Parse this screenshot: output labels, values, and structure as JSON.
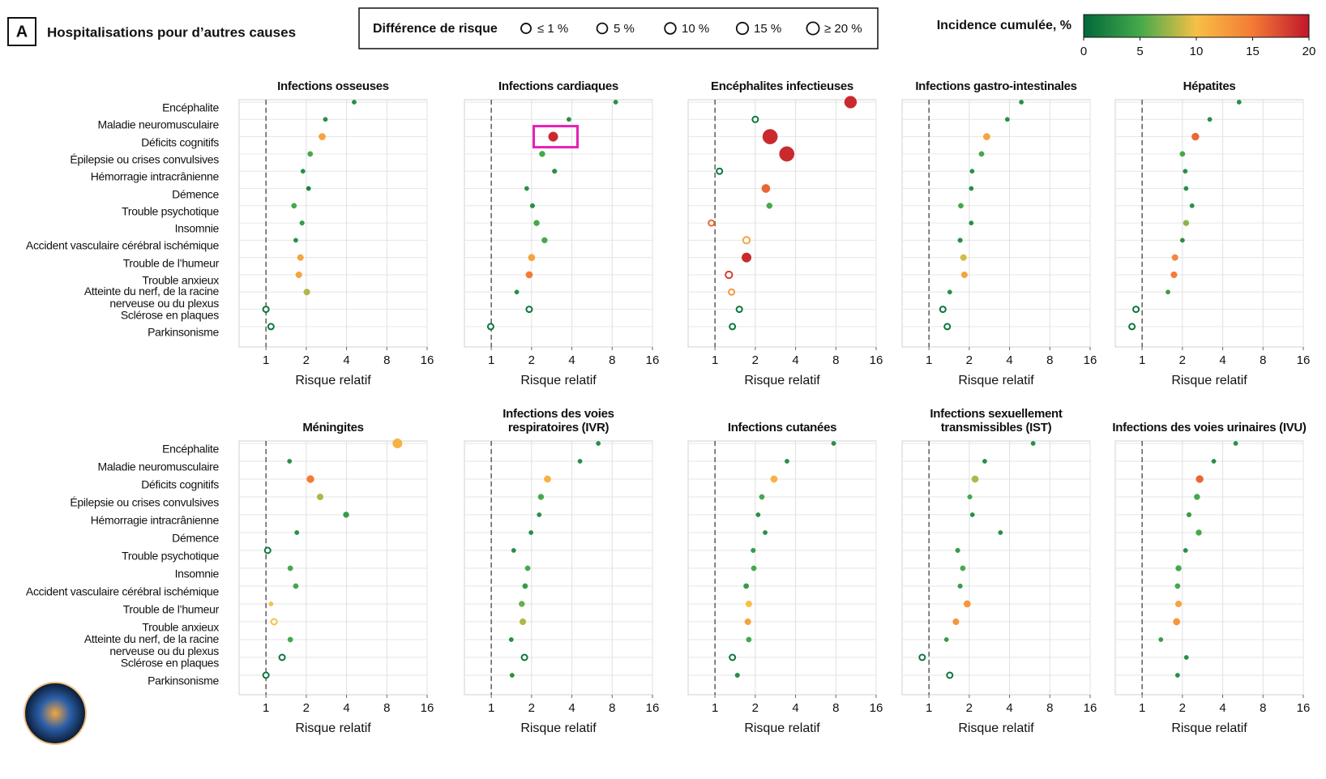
{
  "header": {
    "panel": "A",
    "title": "Hospitalisations pour d’autres causes"
  },
  "legend": {
    "title": "Différence de risque",
    "sizes": [
      {
        "value": 1,
        "label": "≤ 1 %"
      },
      {
        "value": 5,
        "label": "5 %"
      },
      {
        "value": 10,
        "label": "10 %"
      },
      {
        "value": 15,
        "label": "15 %"
      },
      {
        "value": 20,
        "label": "≥ 20 %"
      }
    ]
  },
  "colorbar": {
    "title": "Incidence cumulée, %",
    "ticks": [
      0,
      5,
      10,
      15,
      20
    ],
    "colors": [
      "#00683a",
      "#45a94b",
      "#f6c046",
      "#f47a36",
      "#c0162c"
    ]
  },
  "axis": {
    "xlabel": "Risque relatif",
    "log_base": 2,
    "xlim": [
      0.63,
      16
    ],
    "xticks": [
      1,
      2,
      4,
      8,
      16
    ],
    "reference": 1,
    "grid": true
  },
  "categories": [
    "Encéphalite",
    "Maladie neuromusculaire",
    "Déficits cognitifs",
    "Épilepsie ou crises convulsives",
    "Hémorragie intracrânienne",
    "Démence",
    "Trouble psychotique",
    "Insomnie",
    "Accident vasculaire cérébral ischémique",
    "Trouble de l’humeur",
    "Trouble anxieux",
    "Atteinte du nerf, de la racine\nnerveuse ou du plexus",
    "Sclérose en plaques",
    "Parkinsonisme"
  ],
  "chart_data": [
    {
      "type": "dot",
      "title": "Infections osseuses",
      "values": [
        4.56,
        2.78,
        2.63,
        2.14,
        1.89,
        2.08,
        1.62,
        1.86,
        1.67,
        1.81,
        1.76,
        2.02,
        1.0,
        1.09
      ],
      "sizes": [
        0.5,
        0.5,
        5,
        2,
        0.5,
        0.5,
        2,
        1,
        0.5,
        4,
        4,
        4,
        1,
        1
      ],
      "incidence": [
        3,
        3,
        12,
        5,
        3,
        2,
        5,
        4,
        3,
        12,
        12,
        8,
        1,
        1
      ],
      "hollow": [
        12,
        13
      ]
    },
    {
      "type": "dot",
      "title": "Infections cardiaques",
      "values": [
        8.5,
        3.8,
        2.9,
        2.4,
        2.97,
        1.84,
        2.03,
        2.18,
        2.5,
        2.0,
        1.92,
        1.55,
        1.92,
        0.99
      ],
      "sizes": [
        0.5,
        0.5,
        10,
        3,
        1,
        0.5,
        1,
        3,
        3,
        5,
        5,
        0.5,
        2,
        2
      ],
      "incidence": [
        3,
        3,
        19,
        5,
        3,
        3,
        3,
        5,
        5,
        12,
        15,
        3,
        1,
        1
      ],
      "hollow": [
        12,
        13
      ],
      "highlight": 2
    },
    {
      "type": "dot",
      "title": "Encéphalites infectieuses",
      "values": [
        10.3,
        2.0,
        2.58,
        3.44,
        1.08,
        2.4,
        2.55,
        0.94,
        1.72,
        1.72,
        1.27,
        1.33,
        1.52,
        1.35
      ],
      "sizes": [
        15,
        2,
        20,
        20,
        2,
        8,
        3,
        2,
        5,
        10,
        5,
        3,
        3,
        3
      ],
      "incidence": [
        19,
        1,
        19,
        19,
        1,
        16,
        5,
        16,
        12,
        19,
        18,
        13,
        1,
        1
      ],
      "hollow": [
        1,
        4,
        7,
        8,
        10,
        11,
        12,
        13
      ]
    },
    {
      "type": "dot",
      "title": "Infections gastro-intestinales",
      "values": [
        4.9,
        3.85,
        2.7,
        2.47,
        2.1,
        2.07,
        1.73,
        2.07,
        1.71,
        1.81,
        1.84,
        1.43,
        1.27,
        1.37
      ],
      "sizes": [
        0.5,
        0.5,
        5,
        2,
        0.5,
        0.5,
        2,
        0.5,
        1,
        4,
        4,
        0.5,
        2,
        2
      ],
      "incidence": [
        3,
        3,
        12,
        5,
        3,
        3,
        5,
        3,
        3,
        9,
        12,
        3,
        1,
        1
      ],
      "hollow": [
        12,
        13
      ]
    },
    {
      "type": "dot",
      "title": "Hépatites",
      "values": [
        5.3,
        3.2,
        2.5,
        2.0,
        2.1,
        2.13,
        2.36,
        2.13,
        2.0,
        1.76,
        1.73,
        1.56,
        0.9,
        0.84
      ],
      "sizes": [
        0.5,
        0.5,
        6,
        2,
        0.5,
        0.5,
        0.5,
        3,
        0.5,
        4,
        4,
        0.5,
        2,
        2
      ],
      "incidence": [
        3,
        3,
        16,
        5,
        3,
        3,
        3,
        7,
        3,
        14,
        15,
        4,
        1,
        1
      ],
      "hollow": [
        12,
        13
      ]
    },
    {
      "type": "dot",
      "title": "Méningites",
      "values": [
        9.6,
        1.5,
        2.15,
        2.54,
        3.97,
        1.7,
        1.03,
        1.52,
        1.67,
        1.09,
        1.15,
        1.52,
        1.32,
        1.0
      ],
      "sizes": [
        10,
        0.5,
        6,
        4,
        3,
        0.5,
        2,
        2,
        2,
        0.5,
        2,
        2,
        2,
        2
      ],
      "incidence": [
        11,
        3,
        15,
        8,
        4,
        3,
        1,
        5,
        5,
        10,
        10,
        5,
        1,
        1
      ],
      "hollow": [
        6,
        10,
        12,
        13
      ]
    },
    {
      "type": "dot",
      "title": "Infections des voies\nrespiratoires (IVR)",
      "values": [
        6.3,
        4.6,
        2.63,
        2.35,
        2.28,
        1.98,
        1.47,
        1.87,
        1.79,
        1.69,
        1.72,
        1.41,
        1.77,
        1.43
      ],
      "sizes": [
        0.5,
        0.5,
        5,
        3,
        0.5,
        0.5,
        0.5,
        2,
        2,
        3,
        4,
        0.5,
        2,
        0.5
      ],
      "incidence": [
        3,
        3,
        11,
        5,
        3,
        3,
        3,
        5,
        4,
        6,
        8,
        3,
        1,
        3
      ],
      "hollow": [
        12
      ]
    },
    {
      "type": "dot",
      "title": "Infections cutanées",
      "values": [
        7.7,
        3.45,
        2.76,
        2.24,
        2.1,
        2.37,
        1.93,
        1.95,
        1.71,
        1.79,
        1.76,
        1.79,
        1.35,
        1.47
      ],
      "sizes": [
        0.5,
        0.5,
        5,
        2,
        0.5,
        0.5,
        1,
        2,
        2,
        4,
        4,
        2,
        2,
        1
      ],
      "incidence": [
        3,
        3,
        11,
        5,
        3,
        3,
        4,
        5,
        4,
        10,
        12,
        5,
        1,
        3
      ],
      "hollow": [
        12
      ]
    },
    {
      "type": "dot",
      "title": "Infections sexuellement\ntransmissibles (IST)",
      "values": [
        6.0,
        2.61,
        2.21,
        2.02,
        2.11,
        3.42,
        1.64,
        1.79,
        1.71,
        1.93,
        1.59,
        1.35,
        0.89,
        1.43
      ],
      "sizes": [
        0.5,
        0.5,
        5,
        1,
        0.5,
        0.5,
        1,
        2,
        1,
        5,
        4,
        0.5,
        2,
        2
      ],
      "incidence": [
        3,
        3,
        8,
        5,
        3,
        3,
        4,
        5,
        4,
        13,
        13,
        4,
        1,
        1
      ],
      "hollow": [
        12,
        13
      ]
    },
    {
      "type": "dot",
      "title": "Infections des voies urinaires (IVU)",
      "values": [
        5.0,
        3.43,
        2.69,
        2.57,
        2.24,
        2.65,
        2.11,
        1.87,
        1.84,
        1.87,
        1.81,
        1.38,
        2.14,
        1.84
      ],
      "sizes": [
        0.5,
        0.5,
        6,
        3,
        1,
        3,
        0.5,
        3,
        2,
        4,
        5,
        0.5,
        0.5,
        0.5
      ],
      "incidence": [
        3,
        3,
        16,
        5,
        4,
        5,
        3,
        5,
        5,
        12,
        13,
        4,
        3,
        3
      ],
      "hollow": []
    }
  ]
}
